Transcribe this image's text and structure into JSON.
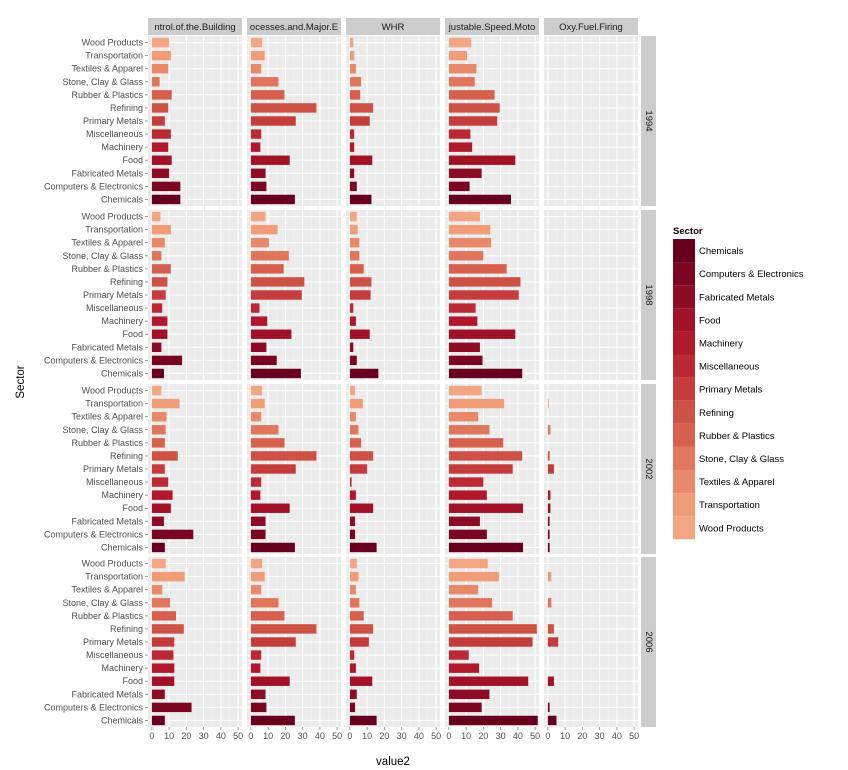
{
  "chart_data": {
    "type": "bar",
    "orientation": "horizontal",
    "facet_columns": [
      "ntrol.of.the.Building",
      "ocesses.and.Major.E",
      "WHR",
      "justable.Speed.Moto",
      "Oxy.Fuel.Firing"
    ],
    "facet_rows": [
      "1994",
      "1998",
      "2002",
      "2006"
    ],
    "categories": [
      "Chemicals",
      "Computers & Electronics",
      "Fabricated Metals",
      "Food",
      "Machinery",
      "Miscellaneous",
      "Primary Metals",
      "Refining",
      "Rubber & Plastics",
      "Stone, Clay & Glass",
      "Textiles & Apparel",
      "Transportation",
      "Wood Products"
    ],
    "xlabel": "value2",
    "ylabel": "Sector",
    "xlim": [
      0,
      50
    ],
    "xticks": [
      0,
      10,
      20,
      30,
      40,
      50
    ],
    "legend": {
      "title": "Sector",
      "position": "right",
      "entries": [
        "Chemicals",
        "Computers & Electronics",
        "Fabricated Metals",
        "Food",
        "Machinery",
        "Miscellaneous",
        "Primary Metals",
        "Refining",
        "Rubber & Plastics",
        "Stone, Clay & Glass",
        "Textiles & Apparel",
        "Transportation",
        "Wood Products"
      ]
    },
    "colors": [
      "#67001f",
      "#7a0622",
      "#8c0c25",
      "#a11228",
      "#b2182b",
      "#bb2a34",
      "#c43c3c",
      "#cc5246",
      "#d6604d",
      "#e0765c",
      "#e88a69",
      "#ef9c77",
      "#f4a582"
    ],
    "grid": true,
    "panel_background": "#ebebeb",
    "values": [
      [
        [
          16.5,
          16.5,
          10,
          11.5,
          9.5,
          11,
          7.5,
          9.5,
          11.5,
          4.5,
          9.5,
          11,
          10
        ],
        [
          25.5,
          9,
          8.5,
          22.5,
          5.5,
          6,
          26,
          38,
          19.5,
          16,
          6,
          8,
          6.5
        ],
        [
          12.5,
          4,
          2.5,
          13,
          2.5,
          2.5,
          11.5,
          13.5,
          6,
          6.5,
          3.5,
          2.5,
          2
        ],
        [
          36,
          12,
          19,
          38.5,
          13.5,
          12.5,
          28,
          29.5,
          26.5,
          15,
          16,
          10.5,
          13
        ],
        [
          0,
          0,
          0,
          0,
          0,
          0,
          0,
          0,
          0,
          0,
          0,
          0,
          0
        ]
      ],
      [
        [
          7,
          17.5,
          5.5,
          9,
          9,
          6,
          8,
          9,
          11,
          5.5,
          7.5,
          11,
          5
        ],
        [
          29,
          15,
          9,
          23.5,
          9.5,
          5,
          29.5,
          31,
          19,
          22,
          10.5,
          15.5,
          8.5
        ],
        [
          16.5,
          4,
          2,
          11.5,
          3.5,
          2,
          12,
          12.5,
          8,
          5.5,
          5.5,
          4.5,
          4
        ],
        [
          42.5,
          19.5,
          18,
          38.5,
          16.5,
          15.5,
          40.5,
          41.5,
          33.5,
          20,
          24.5,
          24,
          18
        ],
        [
          0,
          0,
          0,
          0,
          0,
          0,
          0,
          0,
          0,
          0,
          0,
          0,
          0
        ]
      ],
      [
        [
          7.5,
          24,
          7,
          11,
          12,
          9.5,
          7.5,
          15,
          7.5,
          8,
          8.5,
          16,
          5.5
        ],
        [
          25.5,
          8.5,
          8.5,
          22.5,
          5.5,
          6,
          26,
          38,
          19.5,
          16,
          6,
          8,
          6.5
        ],
        [
          15.5,
          3,
          3,
          13.5,
          3.5,
          1,
          10,
          13.5,
          6.5,
          5,
          3.5,
          7.5,
          3
        ],
        [
          43,
          22,
          18,
          43,
          22,
          20,
          37,
          42.5,
          31.5,
          23.5,
          17,
          32,
          19
        ],
        [
          1,
          1,
          1,
          1.5,
          1.5,
          0,
          3.5,
          1,
          0,
          1.5,
          0,
          0.5,
          0
        ]
      ],
      [
        [
          7.5,
          23,
          7.5,
          13,
          13,
          12.5,
          13,
          18.5,
          14,
          10.5,
          6,
          19,
          8
        ],
        [
          25.5,
          9,
          8.5,
          22.5,
          5.5,
          6,
          26,
          38,
          19.5,
          16,
          6,
          8,
          6.5
        ],
        [
          15.5,
          3,
          4,
          13,
          3.5,
          2.5,
          11,
          13.5,
          8,
          5.5,
          3.5,
          5,
          4
        ],
        [
          51.5,
          19,
          23.5,
          46,
          17.5,
          11.5,
          48.5,
          51,
          37,
          25,
          17,
          29,
          22.5
        ],
        [
          5,
          1,
          0,
          3.5,
          0,
          0,
          6,
          3.5,
          0,
          2,
          0,
          2,
          0
        ]
      ]
    ]
  }
}
